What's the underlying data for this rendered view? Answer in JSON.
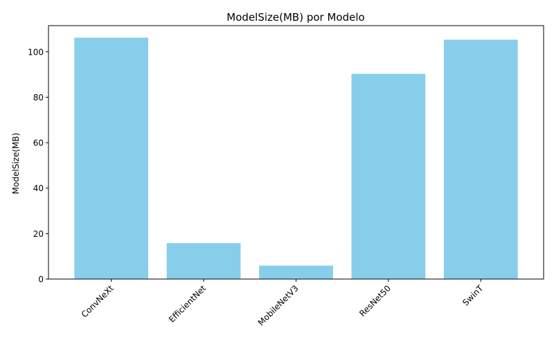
{
  "chart_data": {
    "type": "bar",
    "title": "ModelSize(MB) por Modelo",
    "xlabel": "",
    "ylabel": "ModelSize(MB)",
    "categories": [
      "ConvNeXt",
      "EfficientNet",
      "MobileNetV3",
      "ResNet50",
      "SwinT"
    ],
    "values": [
      106.2,
      15.8,
      5.9,
      90.3,
      105.3
    ],
    "ylim": [
      0,
      111.5
    ],
    "yticks": [
      0,
      20,
      40,
      60,
      80,
      100
    ],
    "bar_color": "#87CEEB",
    "xtick_rotation_deg": 45,
    "grid": false,
    "legend": "none"
  }
}
